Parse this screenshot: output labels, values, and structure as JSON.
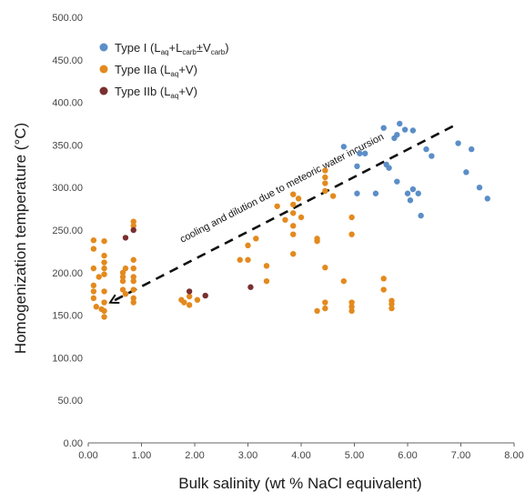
{
  "chart_data": {
    "type": "scatter",
    "xlabel": "Bulk salinity (wt % NaCl equivalent)",
    "ylabel": "Homogenization temperature (°C)",
    "xlim": [
      0,
      8
    ],
    "ylim": [
      0,
      500
    ],
    "x_ticks": [
      "0.00",
      "1.00",
      "2.00",
      "3.00",
      "4.00",
      "5.00",
      "6.00",
      "7.00",
      "8.00"
    ],
    "y_ticks": [
      "0.00",
      "50.00",
      "100.00",
      "150.00",
      "200.00",
      "250.00",
      "300.00",
      "350.00",
      "400.00",
      "450.00",
      "500.00"
    ],
    "grid": false,
    "legend_position": "top-left",
    "series": [
      {
        "name": "Type I (Laq+Lcarb±Vcarb)",
        "legend": {
          "main": "Type I (L",
          "s1": "aq",
          "mid1": "+L",
          "s2": "carb",
          "mid2": "±V",
          "s3": "carb",
          "end": ")"
        },
        "color": "#5b8ec7",
        "points": [
          [
            4.8,
            348
          ],
          [
            5.05,
            293
          ],
          [
            5.05,
            325
          ],
          [
            5.1,
            340
          ],
          [
            5.2,
            340
          ],
          [
            5.4,
            293
          ],
          [
            5.55,
            370
          ],
          [
            5.6,
            327
          ],
          [
            5.65,
            323
          ],
          [
            5.75,
            358
          ],
          [
            5.8,
            362
          ],
          [
            5.8,
            307
          ],
          [
            5.85,
            375
          ],
          [
            5.95,
            368
          ],
          [
            6.0,
            293
          ],
          [
            6.05,
            285
          ],
          [
            6.1,
            367
          ],
          [
            6.1,
            298
          ],
          [
            6.2,
            293
          ],
          [
            6.25,
            267
          ],
          [
            6.35,
            345
          ],
          [
            6.45,
            337
          ],
          [
            6.95,
            352
          ],
          [
            7.1,
            318
          ],
          [
            7.2,
            345
          ],
          [
            7.35,
            300
          ],
          [
            7.5,
            287
          ]
        ]
      },
      {
        "name": "Type IIa (Laq+V)",
        "legend": {
          "main": "Type IIa (L",
          "s1": "aq",
          "end": "+V)"
        },
        "color": "#e38a1e",
        "points": [
          [
            0.1,
            238
          ],
          [
            0.1,
            228
          ],
          [
            0.1,
            205
          ],
          [
            0.1,
            185
          ],
          [
            0.1,
            178
          ],
          [
            0.1,
            170
          ],
          [
            0.15,
            160
          ],
          [
            0.2,
            195
          ],
          [
            0.25,
            157
          ],
          [
            0.3,
            237
          ],
          [
            0.3,
            220
          ],
          [
            0.3,
            212
          ],
          [
            0.3,
            205
          ],
          [
            0.3,
            198
          ],
          [
            0.3,
            178
          ],
          [
            0.3,
            165
          ],
          [
            0.3,
            155
          ],
          [
            0.3,
            148
          ],
          [
            0.65,
            200
          ],
          [
            0.65,
            195
          ],
          [
            0.65,
            190
          ],
          [
            0.65,
            180
          ],
          [
            0.7,
            205
          ],
          [
            0.7,
            175
          ],
          [
            0.85,
            260
          ],
          [
            0.85,
            255
          ],
          [
            0.85,
            215
          ],
          [
            0.85,
            205
          ],
          [
            0.85,
            195
          ],
          [
            0.85,
            190
          ],
          [
            0.85,
            180
          ],
          [
            0.85,
            170
          ],
          [
            0.85,
            165
          ],
          [
            1.75,
            168
          ],
          [
            1.8,
            165
          ],
          [
            1.9,
            172
          ],
          [
            1.9,
            162
          ],
          [
            2.05,
            168
          ],
          [
            2.85,
            215
          ],
          [
            3.0,
            232
          ],
          [
            3.0,
            215
          ],
          [
            3.15,
            240
          ],
          [
            3.35,
            208
          ],
          [
            3.35,
            190
          ],
          [
            3.55,
            278
          ],
          [
            3.7,
            262
          ],
          [
            3.85,
            292
          ],
          [
            3.85,
            280
          ],
          [
            3.85,
            270
          ],
          [
            3.85,
            255
          ],
          [
            3.85,
            245
          ],
          [
            3.85,
            222
          ],
          [
            3.95,
            287
          ],
          [
            4.0,
            265
          ],
          [
            4.3,
            240
          ],
          [
            4.3,
            237
          ],
          [
            4.3,
            155
          ],
          [
            4.45,
            320
          ],
          [
            4.45,
            312
          ],
          [
            4.45,
            305
          ],
          [
            4.45,
            296
          ],
          [
            4.45,
            206
          ],
          [
            4.45,
            165
          ],
          [
            4.45,
            158
          ],
          [
            4.6,
            290
          ],
          [
            4.8,
            190
          ],
          [
            4.95,
            265
          ],
          [
            4.95,
            245
          ],
          [
            4.95,
            165
          ],
          [
            4.95,
            160
          ],
          [
            4.95,
            155
          ],
          [
            5.55,
            193
          ],
          [
            5.55,
            180
          ],
          [
            5.7,
            167
          ],
          [
            5.7,
            163
          ],
          [
            5.7,
            158
          ]
        ]
      },
      {
        "name": "Type IIb (Laq+V)",
        "legend": {
          "main": "Type IIb (L",
          "s1": "aq",
          "end": "+V)"
        },
        "color": "#7a2f2f",
        "points": [
          [
            0.7,
            241
          ],
          [
            0.85,
            250
          ],
          [
            1.9,
            178
          ],
          [
            2.2,
            173
          ],
          [
            3.05,
            183
          ]
        ]
      }
    ],
    "annotation": {
      "text": "cooling and dilution due to meteoric water incursion",
      "arrow_from": [
        6.85,
        372
      ],
      "arrow_to": [
        0.0,
        152
      ]
    }
  }
}
